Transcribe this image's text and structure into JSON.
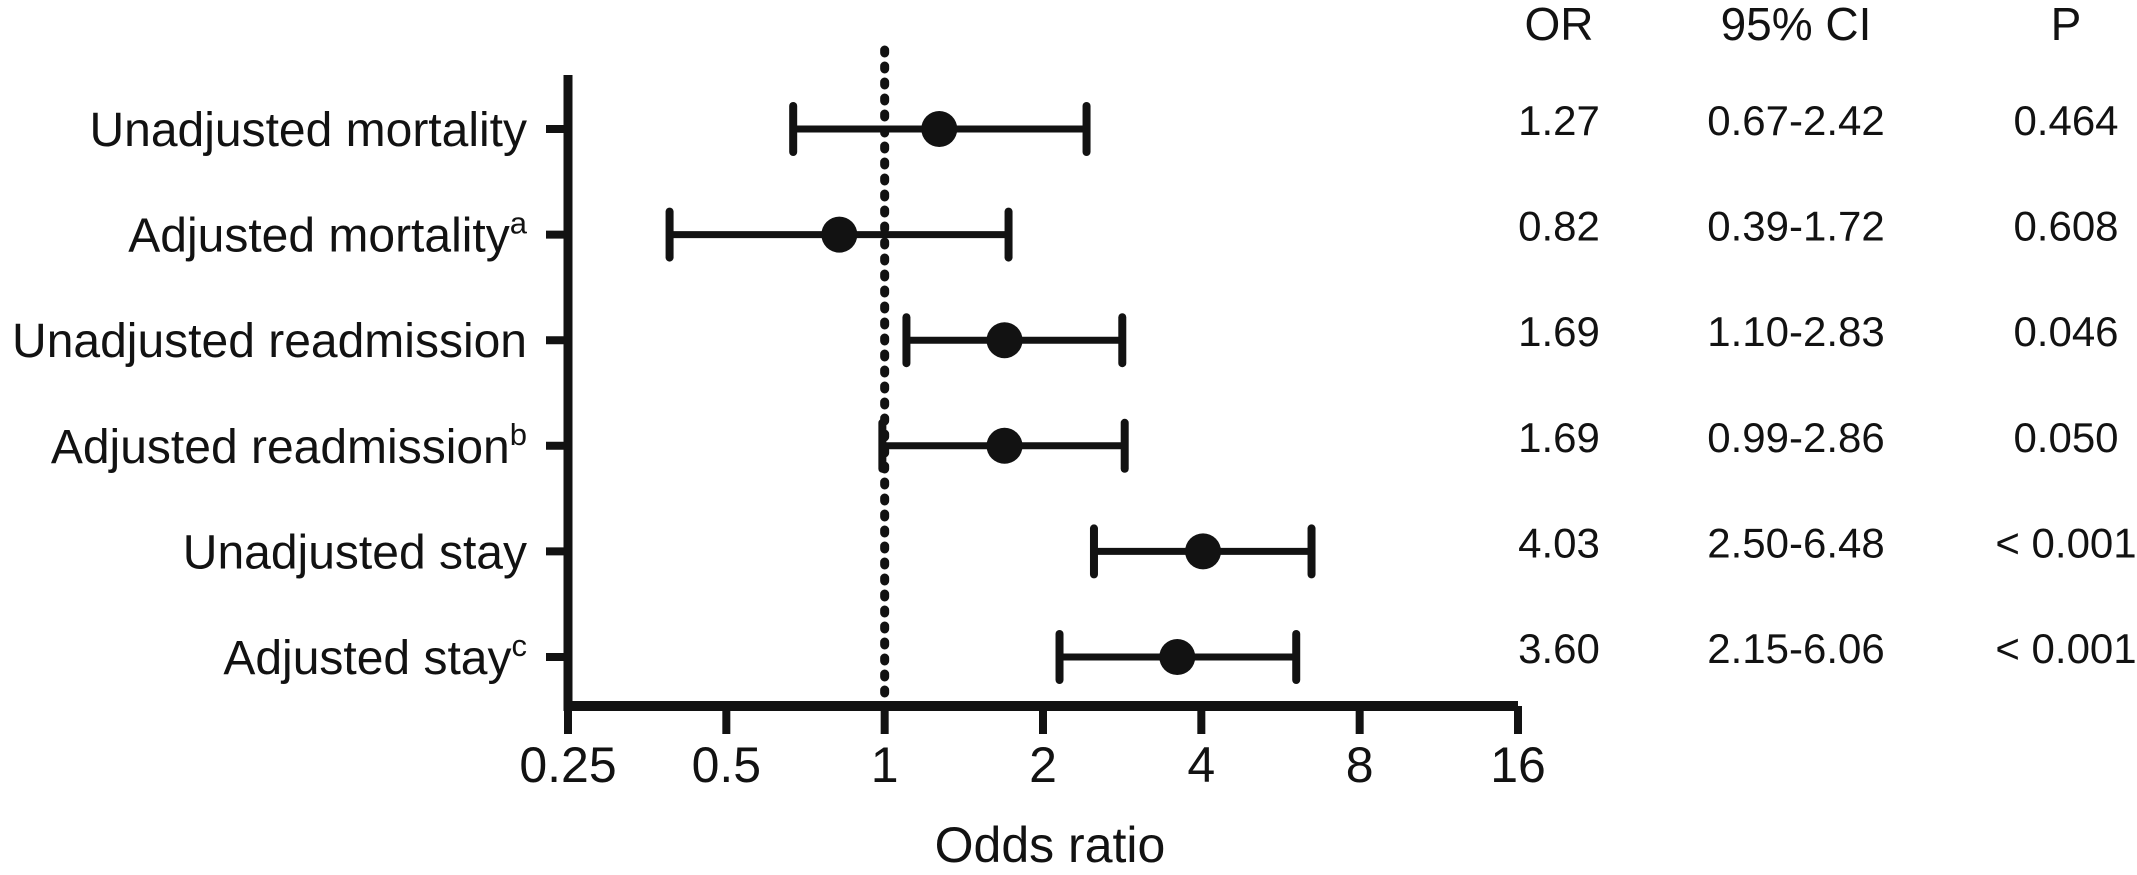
{
  "figure": {
    "background": "#ffffff",
    "ink": "#121212"
  },
  "chart_data": {
    "type": "scatter",
    "subtype": "forest-plot",
    "title": "",
    "xlabel": "Odds ratio",
    "ylabel": "",
    "x_scale": "log2",
    "xlim": [
      0.25,
      16
    ],
    "x_ticks": [
      0.25,
      0.5,
      1,
      2,
      4,
      8,
      16
    ],
    "x_tick_labels": [
      "0.25",
      "0.5",
      "1",
      "2",
      "4",
      "8",
      "16"
    ],
    "reference_line_x": 1,
    "grid": false,
    "rows": [
      {
        "label": "Unadjusted mortality",
        "sup": "",
        "or": 1.27,
        "ci_low": 0.67,
        "ci_high": 2.42,
        "or_text": "1.27",
        "ci_text": "0.67-2.42",
        "p_text": "0.464"
      },
      {
        "label": "Adjusted mortality",
        "sup": "a",
        "or": 0.82,
        "ci_low": 0.39,
        "ci_high": 1.72,
        "or_text": "0.82",
        "ci_text": "0.39-1.72",
        "p_text": "0.608"
      },
      {
        "label": "Unadjusted readmission",
        "sup": "",
        "or": 1.69,
        "ci_low": 1.1,
        "ci_high": 2.83,
        "or_text": "1.69",
        "ci_text": "1.10-2.83",
        "p_text": "0.046"
      },
      {
        "label": "Adjusted readmission",
        "sup": "b",
        "or": 1.69,
        "ci_low": 0.99,
        "ci_high": 2.86,
        "or_text": "1.69",
        "ci_text": "0.99-2.86",
        "p_text": "0.050"
      },
      {
        "label": "Unadjusted stay",
        "sup": "",
        "or": 4.03,
        "ci_low": 2.5,
        "ci_high": 6.48,
        "or_text": "4.03",
        "ci_text": "2.50-6.48",
        "p_text": "< 0.001"
      },
      {
        "label": "Adjusted stay",
        "sup": "c",
        "or": 3.6,
        "ci_low": 2.15,
        "ci_high": 6.06,
        "or_text": "3.60",
        "ci_text": "2.15-6.06",
        "p_text": "< 0.001"
      }
    ]
  },
  "table": {
    "headers": {
      "or": "OR",
      "ci": "95% CI",
      "p": "P"
    }
  }
}
